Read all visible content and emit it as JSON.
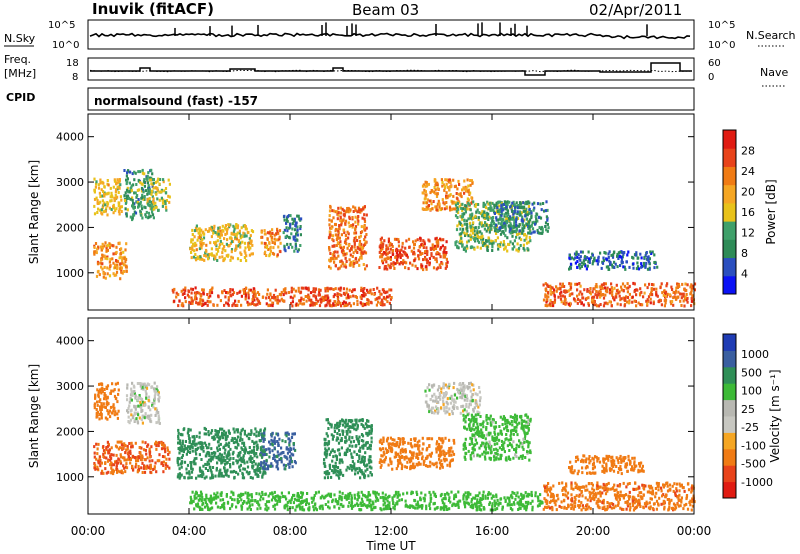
{
  "header": {
    "station": "Inuvik (fitACF)",
    "beam": "Beam 03",
    "date": "02/Apr/2011"
  },
  "noise_panel": {
    "left_label": "N.Sky",
    "right_label": "N.Search",
    "left_ticks": [
      "10^5",
      "10^0"
    ],
    "right_ticks": [
      "10^5",
      "10^0"
    ]
  },
  "freq_panel": {
    "left_label_line1": "Freq.",
    "left_label_line2": "[MHz]",
    "right_label": "Nave",
    "left_ticks": [
      "18",
      "8"
    ],
    "right_ticks": [
      "60",
      "0"
    ]
  },
  "cpid": {
    "label": "CPID",
    "value": "normalsound (fast) -157"
  },
  "colors": {
    "power_scale": [
      "#0b12f5",
      "#2b4fbf",
      "#2e8b57",
      "#3fa06a",
      "#e8c21a",
      "#f5a623",
      "#f07b14",
      "#e8431a",
      "#e01b12"
    ],
    "velocity_scale": [
      "#e01b12",
      "#e8431a",
      "#f07b14",
      "#f5a623",
      "#c7c7c1",
      "#b8b8b2",
      "#3dba37",
      "#2f8f57",
      "#3a5fa0",
      "#1f3cb4"
    ]
  },
  "chart_data": [
    {
      "type": "heatmap",
      "name_panel": "power",
      "ylabel": "Slant Range [km]",
      "colorbar_label": "Power [dB]",
      "colorbar_ticks": [
        "28",
        "24",
        "20",
        "16",
        "12",
        "8",
        "4"
      ],
      "ylim": [
        180,
        4500
      ],
      "yticks": [
        "4000",
        "3000",
        "2000",
        "1000"
      ],
      "xlim_hours": [
        0,
        24
      ],
      "patches": [
        {
          "t0": 0.2,
          "t1": 1.5,
          "r0": 900,
          "r1": 1700,
          "value": 22
        },
        {
          "t0": 0.2,
          "t1": 1.3,
          "r0": 2300,
          "r1": 3100,
          "value": 18
        },
        {
          "t0": 1.4,
          "t1": 2.6,
          "r0": 2200,
          "r1": 3300,
          "value": 12
        },
        {
          "t0": 2.3,
          "t1": 3.2,
          "r0": 2400,
          "r1": 3100,
          "value": 16
        },
        {
          "t0": 3.3,
          "t1": 12.0,
          "r0": 300,
          "r1": 700,
          "value": 26
        },
        {
          "t0": 4.0,
          "t1": 6.5,
          "r0": 1300,
          "r1": 2100,
          "value": 18
        },
        {
          "t0": 6.8,
          "t1": 7.6,
          "r0": 1400,
          "r1": 2000,
          "value": 22
        },
        {
          "t0": 7.7,
          "t1": 8.4,
          "r0": 1500,
          "r1": 2300,
          "value": 10
        },
        {
          "t0": 9.5,
          "t1": 11.0,
          "r0": 1100,
          "r1": 2500,
          "value": 24
        },
        {
          "t0": 11.5,
          "t1": 14.2,
          "r0": 1100,
          "r1": 1800,
          "value": 26
        },
        {
          "t0": 13.2,
          "t1": 15.2,
          "r0": 2400,
          "r1": 3100,
          "value": 22
        },
        {
          "t0": 14.5,
          "t1": 17.5,
          "r0": 1500,
          "r1": 2600,
          "value": 14
        },
        {
          "t0": 15.8,
          "t1": 18.2,
          "r0": 1900,
          "r1": 2600,
          "value": 10
        },
        {
          "t0": 18.0,
          "t1": 24.0,
          "r0": 300,
          "r1": 800,
          "value": 25
        },
        {
          "t0": 19.0,
          "t1": 22.5,
          "r0": 1100,
          "r1": 1500,
          "value": 8
        }
      ]
    },
    {
      "type": "heatmap",
      "name_panel": "velocity",
      "ylabel": "Slant Range [km]",
      "xlabel": "Time UT",
      "colorbar_label": "Velocity [m s⁻¹]",
      "colorbar_ticks": [
        "1000",
        "500",
        "100",
        "25",
        "-25",
        "-100",
        "-500",
        "-1000"
      ],
      "ylim": [
        180,
        4500
      ],
      "yticks": [
        "4000",
        "3000",
        "2000",
        "1000"
      ],
      "xlim_hours": [
        0,
        24
      ],
      "xticks": [
        "00:00",
        "04:00",
        "08:00",
        "12:00",
        "16:00",
        "20:00",
        "00:00"
      ],
      "patches": [
        {
          "t0": 0.2,
          "t1": 3.2,
          "r0": 1100,
          "r1": 1800,
          "value": -500
        },
        {
          "t0": 0.2,
          "t1": 1.2,
          "r0": 2300,
          "r1": 3100,
          "value": -250
        },
        {
          "t0": 1.5,
          "t1": 2.8,
          "r0": 2200,
          "r1": 3100,
          "value": 0
        },
        {
          "t0": 3.5,
          "t1": 7.0,
          "r0": 1000,
          "r1": 2100,
          "value": 150
        },
        {
          "t0": 6.8,
          "t1": 8.2,
          "r0": 1200,
          "r1": 2000,
          "value": 600
        },
        {
          "t0": 9.3,
          "t1": 11.2,
          "r0": 1000,
          "r1": 2300,
          "value": 200
        },
        {
          "t0": 11.5,
          "t1": 14.5,
          "r0": 1200,
          "r1": 1900,
          "value": -300
        },
        {
          "t0": 13.3,
          "t1": 15.5,
          "r0": 2400,
          "r1": 3100,
          "value": 0
        },
        {
          "t0": 14.8,
          "t1": 17.5,
          "r0": 1400,
          "r1": 2400,
          "value": 50
        },
        {
          "t0": 4.0,
          "t1": 18.0,
          "r0": 300,
          "r1": 700,
          "value": 60
        },
        {
          "t0": 18.0,
          "t1": 24.0,
          "r0": 300,
          "r1": 900,
          "value": -400
        },
        {
          "t0": 19.0,
          "t1": 22.0,
          "r0": 1100,
          "r1": 1500,
          "value": -150
        }
      ]
    }
  ]
}
